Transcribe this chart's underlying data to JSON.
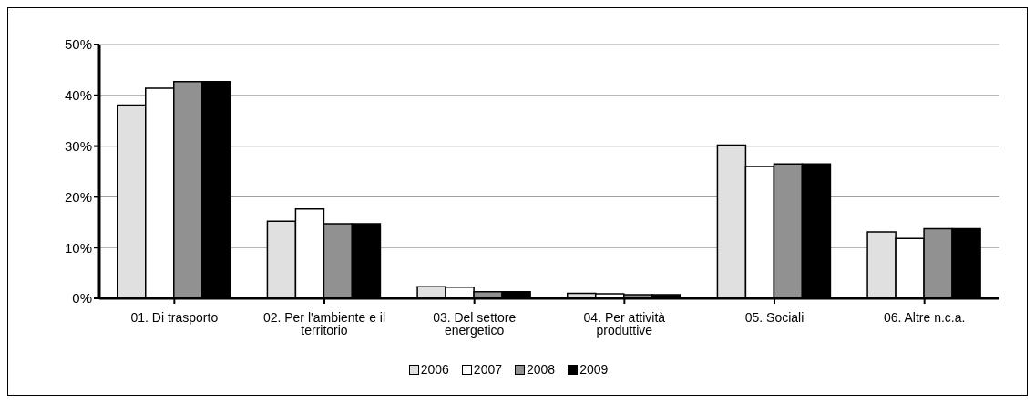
{
  "chart_data": {
    "type": "bar",
    "categories": [
      "01. Di trasporto",
      "02. Per l'ambiente e il territorio",
      "03. Del settore energetico",
      "04. Per attività produttive",
      "05. Sociali",
      "06. Altre n.c.a."
    ],
    "series": [
      {
        "name": "2006",
        "color": "#e0e0e0",
        "values": [
          38.1,
          15.2,
          2.3,
          1.0,
          30.2,
          13.1
        ]
      },
      {
        "name": "2007",
        "color": "#ffffff",
        "values": [
          41.4,
          17.6,
          2.2,
          0.9,
          26.0,
          11.8
        ]
      },
      {
        "name": "2008",
        "color": "#919191",
        "values": [
          42.7,
          14.7,
          1.3,
          0.7,
          26.5,
          13.7
        ]
      },
      {
        "name": "2009",
        "color": "#000000",
        "values": [
          42.7,
          14.7,
          1.3,
          0.7,
          26.5,
          13.7
        ]
      }
    ],
    "ylim": [
      0,
      50
    ],
    "yticks": [
      {
        "value": 0,
        "label": "0%"
      },
      {
        "value": 10,
        "label": "10%"
      },
      {
        "value": 20,
        "label": "20%"
      },
      {
        "value": 30,
        "label": "30%"
      },
      {
        "value": 40,
        "label": "40%"
      },
      {
        "value": 50,
        "label": "50%"
      }
    ],
    "grid": "y",
    "legend": "bottom"
  }
}
